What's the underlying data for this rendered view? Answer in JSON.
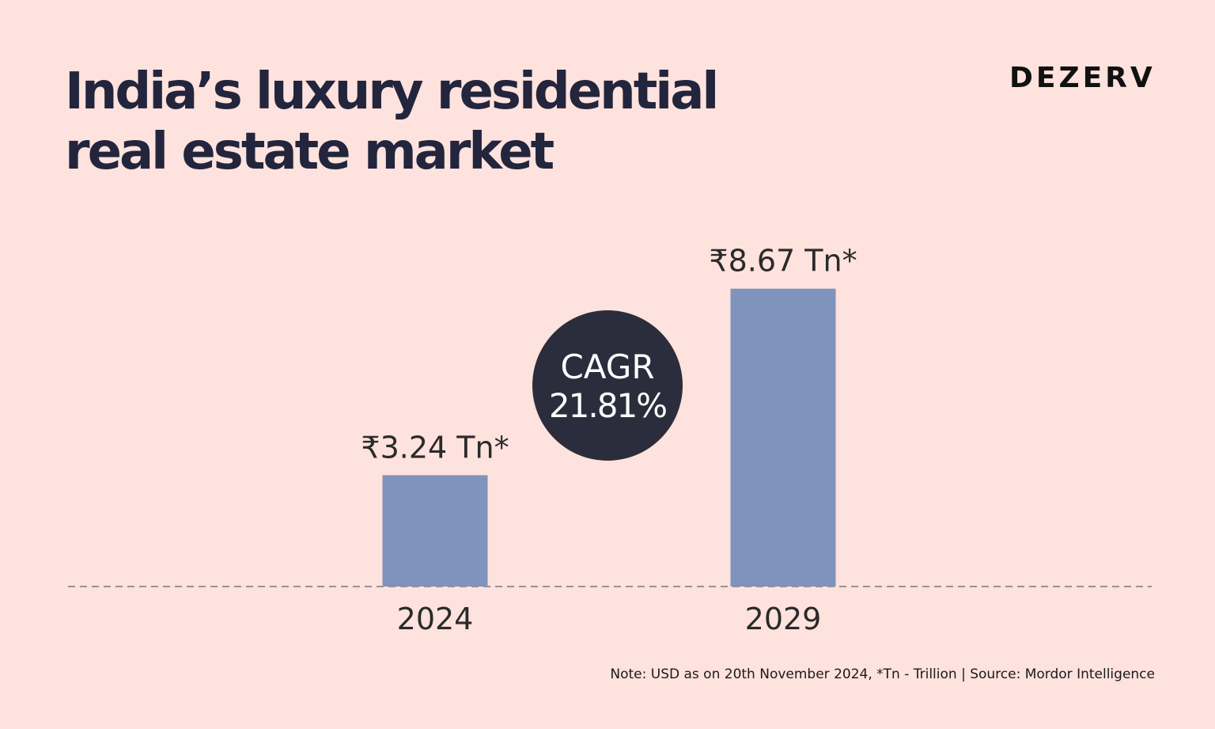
{
  "title_line1": "India’s luxury residential",
  "title_line2": "real estate market",
  "logo": "DEZERV",
  "note": "Note: USD as on 20th November 2024, *Tn - Trillion | Source: Mordor Intelligence",
  "colors": {
    "background": "#fde2dd",
    "bar": "#7f93bd",
    "badge": "#2b2d3c",
    "text": "#23253d"
  },
  "chart_data": {
    "type": "bar",
    "title": "India’s luxury residential real estate market",
    "categories": [
      "2024",
      "2029"
    ],
    "values": [
      3.24,
      8.67
    ],
    "unit": "₹ Tn",
    "data_labels": [
      "₹3.24 Tn*",
      "₹8.67 Tn*"
    ],
    "annotation": {
      "line1": "CAGR",
      "line2": "21.81%"
    },
    "xlabel": "",
    "ylabel": "",
    "ylim": [
      0,
      10
    ],
    "grid": false,
    "legend": "none"
  }
}
